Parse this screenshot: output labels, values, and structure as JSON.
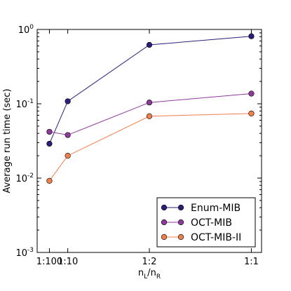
{
  "chart_data": {
    "type": "line",
    "xlabel": "n_L/n_R",
    "ylabel": "Average run time (sec)",
    "yscale": "log",
    "ylim": [
      0.001,
      1
    ],
    "grid": false,
    "legend_position": "bottom-right",
    "x_ticks": [
      {
        "label": "1:100",
        "value": 0.01
      },
      {
        "label": "1:10",
        "value": 0.1
      },
      {
        "label": "1:2",
        "value": 0.5
      },
      {
        "label": "1:1",
        "value": 1.0
      }
    ],
    "y_ticks": [
      {
        "base": "10",
        "exp": "-3",
        "value": 0.001
      },
      {
        "base": "10",
        "exp": "-2",
        "value": 0.01
      },
      {
        "base": "10",
        "exp": "-1",
        "value": 0.1
      },
      {
        "base": "10",
        "exp": "0",
        "value": 1
      }
    ],
    "x": [
      0.01,
      0.1,
      0.5,
      1.0
    ],
    "series": [
      {
        "name": "Enum-MIB",
        "color": "#2b1f7a",
        "values": [
          0.029,
          0.108,
          0.62,
          0.81
        ]
      },
      {
        "name": "OCT-MIB",
        "color": "#8e3a9c",
        "values": [
          0.042,
          0.038,
          0.104,
          0.137
        ]
      },
      {
        "name": "OCT-MIB-II",
        "color": "#f07f4e",
        "values": [
          0.0092,
          0.02,
          0.068,
          0.074
        ]
      }
    ]
  }
}
